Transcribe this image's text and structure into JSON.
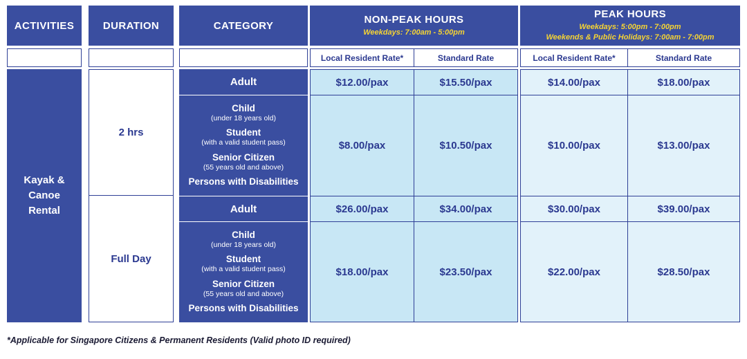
{
  "colors": {
    "header_blue": "#3A4EA0",
    "text_blue": "#2B3990",
    "non_peak_cell": "#C8E7F5",
    "peak_cell": "#E2F2FA",
    "border_blue": "#2E3F96",
    "subtitle_yellow": "#F6D433"
  },
  "headers": {
    "activities": "ACTIVITIES",
    "duration": "DURATION",
    "category": "CATEGORY",
    "non_peak": {
      "title": "NON-PEAK HOURS",
      "subtitle": "Weekdays: 7:00am - 5:00pm"
    },
    "peak": {
      "title": "PEAK HOURS",
      "subtitle1": "Weekdays: 5:00pm - 7:00pm",
      "subtitle2": "Weekends & Public Holidays: 7:00am - 7:00pm"
    },
    "rate_columns": [
      "Local Resident Rate*",
      "Standard Rate",
      "Local Resident Rate*",
      "Standard Rate"
    ]
  },
  "activity": "Kayak & Canoe Rental",
  "durations": [
    {
      "label": "2 hrs"
    },
    {
      "label": "Full Day"
    }
  ],
  "rows": [
    {
      "category": [
        {
          "main": "Adult",
          "sub": ""
        }
      ],
      "rates": [
        "$12.00/pax",
        "$15.50/pax",
        "$14.00/pax",
        "$18.00/pax"
      ]
    },
    {
      "category": [
        {
          "main": "Child",
          "sub": "(under 18 years old)"
        },
        {
          "main": "Student",
          "sub": "(with a valid student pass)"
        },
        {
          "main": "Senior Citizen",
          "sub": "(55 years old and above)"
        },
        {
          "main": "Persons with Disabilities",
          "sub": ""
        }
      ],
      "rates": [
        "$8.00/pax",
        "$10.50/pax",
        "$10.00/pax",
        "$13.00/pax"
      ]
    },
    {
      "category": [
        {
          "main": "Adult",
          "sub": ""
        }
      ],
      "rates": [
        "$26.00/pax",
        "$34.00/pax",
        "$30.00/pax",
        "$39.00/pax"
      ]
    },
    {
      "category": [
        {
          "main": "Child",
          "sub": "(under 18 years old)"
        },
        {
          "main": "Student",
          "sub": "(with a valid student pass)"
        },
        {
          "main": "Senior Citizen",
          "sub": "(55 years old and above)"
        },
        {
          "main": "Persons with Disabilities",
          "sub": ""
        }
      ],
      "rates": [
        "$18.00/pax",
        "$23.50/pax",
        "$22.00/pax",
        "$28.50/pax"
      ]
    }
  ],
  "footnote": "*Applicable for Singapore Citizens & Permanent Residents (Valid photo ID required)"
}
